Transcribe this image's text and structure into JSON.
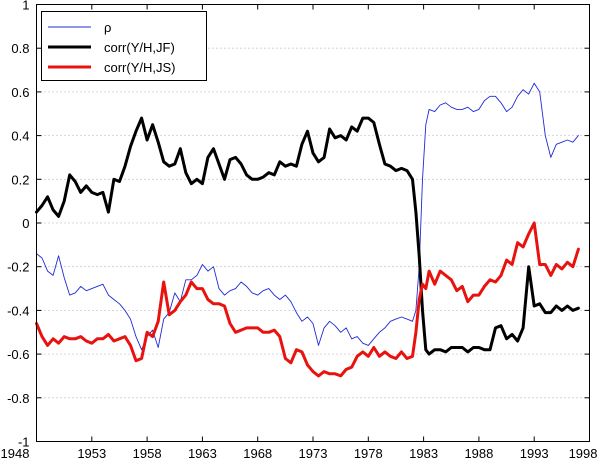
{
  "chart_data": {
    "type": "line",
    "title": "",
    "xlabel": "",
    "ylabel": "",
    "xlim": [
      1948,
      1998
    ],
    "ylim": [
      -1,
      1
    ],
    "grid": "horizontal dotted",
    "legend_position": "top-left",
    "x_ticks": [
      1948,
      1953,
      1958,
      1963,
      1968,
      1973,
      1978,
      1983,
      1988,
      1993,
      1998
    ],
    "y_ticks": [
      -1,
      -0.8,
      -0.6,
      -0.4,
      -0.2,
      0,
      0.2,
      0.4,
      0.6,
      0.8,
      1
    ],
    "x_tick_labels": [
      "1948",
      "1953",
      "1958",
      "1963",
      "1968",
      "1973",
      "1978",
      "1983",
      "1988",
      "1993",
      "1998"
    ],
    "y_tick_labels": [
      "-1",
      "-0.8",
      "-0.6",
      "-0.4",
      "-0.2",
      "0",
      "0.2",
      "0.4",
      "0.6",
      "0.8",
      "1"
    ],
    "series": [
      {
        "name": "ρ",
        "color": "#1f2bd6",
        "width": 0.9,
        "x": [
          1948.0,
          1948.5,
          1949.0,
          1949.5,
          1950.0,
          1950.5,
          1951.0,
          1951.5,
          1952.0,
          1952.5,
          1953.0,
          1953.5,
          1954.0,
          1954.5,
          1955.0,
          1955.5,
          1956.0,
          1956.5,
          1957.0,
          1957.5,
          1958.0,
          1958.5,
          1959.0,
          1959.5,
          1960.0,
          1960.5,
          1961.0,
          1961.5,
          1962.0,
          1962.5,
          1963.0,
          1963.5,
          1964.0,
          1964.5,
          1965.0,
          1965.5,
          1966.0,
          1966.5,
          1967.0,
          1967.5,
          1968.0,
          1968.5,
          1969.0,
          1969.5,
          1970.0,
          1970.5,
          1971.0,
          1971.5,
          1972.0,
          1972.5,
          1973.0,
          1973.5,
          1974.0,
          1974.5,
          1975.0,
          1975.5,
          1976.0,
          1976.5,
          1977.0,
          1977.5,
          1978.0,
          1978.5,
          1979.0,
          1979.5,
          1980.0,
          1980.5,
          1981.0,
          1981.5,
          1982.0,
          1982.3,
          1982.6,
          1982.9,
          1983.2,
          1983.5,
          1984.0,
          1984.5,
          1985.0,
          1985.5,
          1986.0,
          1986.5,
          1987.0,
          1987.5,
          1988.0,
          1988.5,
          1989.0,
          1989.5,
          1990.0,
          1990.5,
          1991.0,
          1991.5,
          1992.0,
          1992.5,
          1993.0,
          1993.5,
          1994.0,
          1994.5,
          1995.0,
          1995.5,
          1996.0,
          1996.5,
          1997.0
        ],
        "values": [
          -0.14,
          -0.16,
          -0.22,
          -0.24,
          -0.15,
          -0.25,
          -0.33,
          -0.32,
          -0.29,
          -0.31,
          -0.3,
          -0.29,
          -0.28,
          -0.33,
          -0.35,
          -0.37,
          -0.4,
          -0.44,
          -0.52,
          -0.58,
          -0.52,
          -0.49,
          -0.57,
          -0.44,
          -0.41,
          -0.32,
          -0.36,
          -0.26,
          -0.26,
          -0.24,
          -0.19,
          -0.22,
          -0.2,
          -0.3,
          -0.33,
          -0.31,
          -0.3,
          -0.27,
          -0.29,
          -0.32,
          -0.33,
          -0.31,
          -0.3,
          -0.33,
          -0.35,
          -0.33,
          -0.36,
          -0.41,
          -0.45,
          -0.43,
          -0.46,
          -0.56,
          -0.48,
          -0.45,
          -0.47,
          -0.5,
          -0.48,
          -0.53,
          -0.52,
          -0.55,
          -0.56,
          -0.53,
          -0.5,
          -0.48,
          -0.45,
          -0.44,
          -0.43,
          -0.44,
          -0.45,
          -0.4,
          -0.2,
          0.2,
          0.45,
          0.52,
          0.51,
          0.54,
          0.55,
          0.53,
          0.52,
          0.52,
          0.53,
          0.51,
          0.52,
          0.56,
          0.58,
          0.58,
          0.55,
          0.51,
          0.53,
          0.58,
          0.61,
          0.59,
          0.64,
          0.6,
          0.4,
          0.3,
          0.36,
          0.37,
          0.38,
          0.37,
          0.4
        ]
      },
      {
        "name": "corr(Y/H,JF)",
        "color": "#000000",
        "width": 3,
        "x": [
          1948.0,
          1948.5,
          1949.0,
          1949.5,
          1950.0,
          1950.5,
          1951.0,
          1951.5,
          1952.0,
          1952.5,
          1953.0,
          1953.5,
          1954.0,
          1954.5,
          1955.0,
          1955.5,
          1956.0,
          1956.5,
          1957.0,
          1957.5,
          1958.0,
          1958.5,
          1959.0,
          1959.5,
          1960.0,
          1960.5,
          1961.0,
          1961.5,
          1962.0,
          1962.5,
          1963.0,
          1963.5,
          1964.0,
          1964.5,
          1965.0,
          1965.5,
          1966.0,
          1966.5,
          1967.0,
          1967.5,
          1968.0,
          1968.5,
          1969.0,
          1969.5,
          1970.0,
          1970.5,
          1971.0,
          1971.5,
          1972.0,
          1972.5,
          1973.0,
          1973.5,
          1974.0,
          1974.5,
          1975.0,
          1975.5,
          1976.0,
          1976.5,
          1977.0,
          1977.5,
          1978.0,
          1978.5,
          1979.0,
          1979.5,
          1980.0,
          1980.5,
          1981.0,
          1981.5,
          1982.0,
          1982.3,
          1982.6,
          1982.9,
          1983.2,
          1983.5,
          1984.0,
          1984.5,
          1985.0,
          1985.5,
          1986.0,
          1986.5,
          1987.0,
          1987.5,
          1988.0,
          1988.5,
          1989.0,
          1989.5,
          1990.0,
          1990.5,
          1991.0,
          1991.5,
          1992.0,
          1992.5,
          1993.0,
          1993.5,
          1994.0,
          1994.5,
          1995.0,
          1995.5,
          1996.0,
          1996.5,
          1997.0
        ],
        "values": [
          0.05,
          0.08,
          0.12,
          0.06,
          0.03,
          0.1,
          0.22,
          0.19,
          0.14,
          0.17,
          0.14,
          0.13,
          0.14,
          0.05,
          0.2,
          0.19,
          0.26,
          0.35,
          0.42,
          0.48,
          0.38,
          0.45,
          0.37,
          0.28,
          0.26,
          0.27,
          0.34,
          0.23,
          0.18,
          0.2,
          0.18,
          0.3,
          0.34,
          0.27,
          0.2,
          0.29,
          0.3,
          0.27,
          0.22,
          0.2,
          0.2,
          0.21,
          0.23,
          0.22,
          0.28,
          0.26,
          0.27,
          0.26,
          0.36,
          0.42,
          0.32,
          0.28,
          0.3,
          0.43,
          0.39,
          0.4,
          0.38,
          0.44,
          0.42,
          0.48,
          0.48,
          0.46,
          0.36,
          0.27,
          0.26,
          0.24,
          0.25,
          0.24,
          0.2,
          0.05,
          -0.15,
          -0.4,
          -0.58,
          -0.6,
          -0.58,
          -0.58,
          -0.59,
          -0.57,
          -0.57,
          -0.57,
          -0.59,
          -0.57,
          -0.57,
          -0.58,
          -0.58,
          -0.48,
          -0.47,
          -0.53,
          -0.51,
          -0.54,
          -0.48,
          -0.2,
          -0.38,
          -0.37,
          -0.41,
          -0.41,
          -0.38,
          -0.4,
          -0.38,
          -0.4,
          -0.39
        ]
      },
      {
        "name": "corr(Y/H,JS)",
        "color": "#e8130f",
        "width": 3,
        "x": [
          1948.0,
          1948.5,
          1949.0,
          1949.5,
          1950.0,
          1950.5,
          1951.0,
          1951.5,
          1952.0,
          1952.5,
          1953.0,
          1953.5,
          1954.0,
          1954.5,
          1955.0,
          1955.5,
          1956.0,
          1956.5,
          1957.0,
          1957.5,
          1958.0,
          1958.5,
          1959.0,
          1959.5,
          1960.0,
          1960.5,
          1961.0,
          1961.5,
          1962.0,
          1962.5,
          1963.0,
          1963.5,
          1964.0,
          1964.5,
          1965.0,
          1965.5,
          1966.0,
          1966.5,
          1967.0,
          1967.5,
          1968.0,
          1968.5,
          1969.0,
          1969.5,
          1970.0,
          1970.5,
          1971.0,
          1971.5,
          1972.0,
          1972.5,
          1973.0,
          1973.5,
          1974.0,
          1974.5,
          1975.0,
          1975.5,
          1976.0,
          1976.5,
          1977.0,
          1977.5,
          1978.0,
          1978.5,
          1979.0,
          1979.5,
          1980.0,
          1980.5,
          1981.0,
          1981.5,
          1982.0,
          1982.3,
          1982.6,
          1982.9,
          1983.2,
          1983.5,
          1984.0,
          1984.5,
          1985.0,
          1985.5,
          1986.0,
          1986.5,
          1987.0,
          1987.5,
          1988.0,
          1988.5,
          1989.0,
          1989.5,
          1990.0,
          1990.5,
          1991.0,
          1991.5,
          1992.0,
          1992.5,
          1993.0,
          1993.5,
          1994.0,
          1994.5,
          1995.0,
          1995.5,
          1996.0,
          1996.5,
          1997.0
        ],
        "values": [
          -0.46,
          -0.52,
          -0.56,
          -0.53,
          -0.55,
          -0.52,
          -0.53,
          -0.53,
          -0.52,
          -0.54,
          -0.55,
          -0.53,
          -0.53,
          -0.51,
          -0.54,
          -0.53,
          -0.52,
          -0.56,
          -0.63,
          -0.62,
          -0.5,
          -0.52,
          -0.45,
          -0.27,
          -0.42,
          -0.4,
          -0.36,
          -0.33,
          -0.27,
          -0.3,
          -0.3,
          -0.35,
          -0.37,
          -0.37,
          -0.38,
          -0.46,
          -0.5,
          -0.49,
          -0.48,
          -0.48,
          -0.48,
          -0.5,
          -0.5,
          -0.49,
          -0.52,
          -0.62,
          -0.64,
          -0.58,
          -0.59,
          -0.65,
          -0.68,
          -0.7,
          -0.68,
          -0.69,
          -0.69,
          -0.7,
          -0.67,
          -0.66,
          -0.61,
          -0.59,
          -0.61,
          -0.57,
          -0.61,
          -0.59,
          -0.61,
          -0.62,
          -0.59,
          -0.62,
          -0.61,
          -0.5,
          -0.35,
          -0.28,
          -0.3,
          -0.22,
          -0.28,
          -0.22,
          -0.24,
          -0.26,
          -0.31,
          -0.29,
          -0.36,
          -0.33,
          -0.33,
          -0.29,
          -0.26,
          -0.27,
          -0.24,
          -0.17,
          -0.19,
          -0.09,
          -0.11,
          -0.05,
          0.0,
          -0.19,
          -0.19,
          -0.24,
          -0.19,
          -0.21,
          -0.18,
          -0.2,
          -0.12
        ]
      }
    ]
  }
}
